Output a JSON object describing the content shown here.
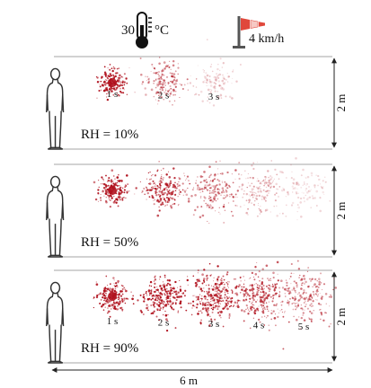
{
  "header": {
    "temperature_value": "30",
    "temperature_unit": "°C",
    "wind_speed": "4 km/h",
    "thermometer_icon": "thermometer-icon",
    "windsock_icon": "windsock-icon",
    "wind_color": "#e0483c"
  },
  "droplet_color": "#b0121e",
  "panels": [
    {
      "rh_label": "RH = 10%",
      "height_label": "2 m",
      "clouds": [
        {
          "time": "1 s",
          "density": 1.0,
          "spread": 0.45
        },
        {
          "time": "2 s",
          "density": 0.55,
          "spread": 0.8
        },
        {
          "time": "3 s",
          "density": 0.22,
          "spread": 0.95
        }
      ]
    },
    {
      "rh_label": "RH = 50%",
      "height_label": "2 m",
      "clouds": [
        {
          "time": "",
          "density": 1.0,
          "spread": 0.45
        },
        {
          "time": "",
          "density": 0.85,
          "spread": 0.75
        },
        {
          "time": "",
          "density": 0.55,
          "spread": 1.0
        },
        {
          "time": "",
          "density": 0.35,
          "spread": 1.05
        },
        {
          "time": "",
          "density": 0.18,
          "spread": 1.1
        }
      ]
    },
    {
      "rh_label": "RH = 90%",
      "height_label": "2 m",
      "clouds": [
        {
          "time": "1 s",
          "density": 1.0,
          "spread": 0.5
        },
        {
          "time": "2 s",
          "density": 1.0,
          "spread": 0.8
        },
        {
          "time": "3 s",
          "density": 0.9,
          "spread": 1.0
        },
        {
          "time": "4 s",
          "density": 0.75,
          "spread": 1.15
        },
        {
          "time": "5 s",
          "density": 0.55,
          "spread": 1.2
        }
      ]
    }
  ],
  "length_label": "6 m",
  "person_icon": "person-icon"
}
